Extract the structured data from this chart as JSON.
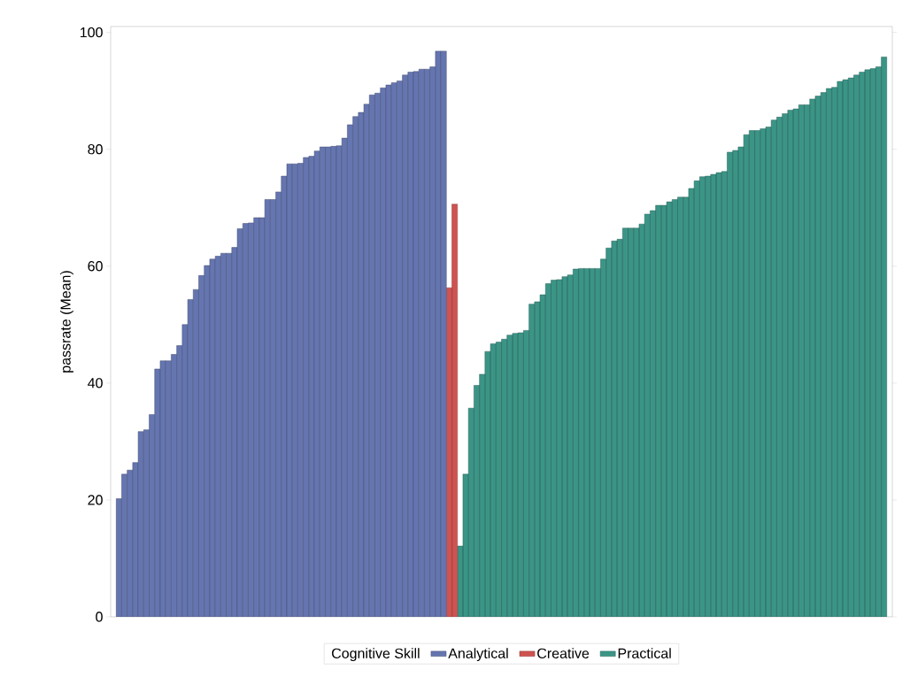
{
  "chart_data": {
    "type": "bar",
    "ylabel": "passrate (Mean)",
    "legend_title": "Cognitive Skill",
    "legend": "bottom",
    "tick_labels": "y",
    "stacked": true,
    "ylim": [
      0,
      101
    ],
    "yticks": [
      0,
      20,
      40,
      60,
      80,
      100
    ],
    "categories": [
      null,
      null,
      null,
      null,
      null,
      null,
      null,
      null,
      null,
      null,
      null,
      null,
      null,
      null,
      null,
      null,
      null,
      null,
      null,
      null,
      null,
      null,
      null,
      null,
      null,
      null,
      null,
      null,
      null,
      null,
      null,
      null,
      null,
      null,
      null,
      null,
      null,
      null,
      null,
      null,
      null,
      null,
      null,
      null,
      null,
      null,
      null,
      null,
      null,
      null,
      null,
      null,
      null,
      null,
      null,
      null,
      null,
      null,
      null,
      null,
      null,
      null,
      null,
      null,
      null,
      null,
      null,
      null,
      null,
      null,
      null,
      null,
      null,
      null,
      null,
      null,
      null,
      null,
      null,
      null,
      null,
      null,
      null,
      null,
      null,
      null,
      null,
      null,
      null,
      null,
      null,
      null,
      null,
      null,
      null,
      null,
      null,
      null,
      null,
      null,
      null,
      null,
      null,
      null,
      null,
      null,
      null,
      null,
      null,
      null,
      null,
      null,
      null,
      null,
      null,
      null,
      null,
      null,
      null,
      null,
      null,
      null,
      null,
      null,
      null,
      null,
      null,
      null,
      null,
      null,
      null,
      null,
      null,
      null,
      null,
      null,
      null,
      null,
      null,
      null
    ],
    "series": [
      {
        "name": "Analytical",
        "color": "#6575b0",
        "values": [
          20.2,
          24.4,
          25.1,
          26.4,
          31.7,
          32.0,
          34.6,
          42.4,
          43.8,
          43.8,
          44.9,
          46.4,
          50.0,
          54.3,
          56.0,
          58.4,
          60.1,
          61.2,
          61.7,
          62.2,
          62.2,
          63.2,
          66.4,
          67.3,
          67.4,
          68.3,
          68.3,
          71.4,
          71.4,
          72.7,
          75.4,
          77.5,
          77.5,
          77.6,
          78.6,
          78.8,
          79.7,
          80.4,
          80.4,
          80.5,
          80.6,
          81.9,
          84.2,
          85.6,
          86.3,
          87.7,
          89.3,
          89.6,
          90.5,
          91.0,
          91.4,
          91.7,
          92.7,
          93.2,
          93.3,
          93.7,
          93.7,
          94.1,
          96.8,
          96.8,
          null,
          null,
          null,
          null,
          null,
          null,
          null,
          null,
          null,
          null,
          null,
          null,
          null,
          null,
          null,
          null,
          null,
          null,
          null,
          null,
          null,
          null,
          null,
          null,
          null,
          null,
          null,
          null,
          null,
          null,
          null,
          null,
          null,
          null,
          null,
          null,
          null,
          null,
          null,
          null,
          null,
          null,
          null,
          null,
          null,
          null,
          null,
          null,
          null,
          null,
          null,
          null,
          null,
          null,
          null,
          null,
          null,
          null,
          null,
          null,
          null,
          null,
          null,
          null,
          null,
          null,
          null,
          null,
          null,
          null,
          null,
          null,
          null,
          null,
          null,
          null,
          null,
          null,
          null,
          null
        ]
      },
      {
        "name": "Creative",
        "color": "#cf5350",
        "values": [
          null,
          null,
          null,
          null,
          null,
          null,
          null,
          null,
          null,
          null,
          null,
          null,
          null,
          null,
          null,
          null,
          null,
          null,
          null,
          null,
          null,
          null,
          null,
          null,
          null,
          null,
          null,
          null,
          null,
          null,
          null,
          null,
          null,
          null,
          null,
          null,
          null,
          null,
          null,
          null,
          null,
          null,
          null,
          null,
          null,
          null,
          null,
          null,
          null,
          null,
          null,
          null,
          null,
          null,
          null,
          null,
          null,
          null,
          null,
          null,
          56.3,
          70.6,
          null,
          null,
          null,
          null,
          null,
          null,
          null,
          null,
          null,
          null,
          null,
          null,
          null,
          null,
          null,
          null,
          null,
          null,
          null,
          null,
          null,
          null,
          null,
          null,
          null,
          null,
          null,
          null,
          null,
          null,
          null,
          null,
          null,
          null,
          null,
          null,
          null,
          null,
          null,
          null,
          null,
          null,
          null,
          null,
          null,
          null,
          null,
          null,
          null,
          null,
          null,
          null,
          null,
          null,
          null,
          null,
          null,
          null,
          null,
          null,
          null,
          null,
          null,
          null,
          null,
          null,
          null,
          null,
          null,
          null,
          null,
          null,
          null,
          null,
          null,
          null,
          null,
          null
        ]
      },
      {
        "name": "Practical",
        "color": "#3b9587",
        "values": [
          null,
          null,
          null,
          null,
          null,
          null,
          null,
          null,
          null,
          null,
          null,
          null,
          null,
          null,
          null,
          null,
          null,
          null,
          null,
          null,
          null,
          null,
          null,
          null,
          null,
          null,
          null,
          null,
          null,
          null,
          null,
          null,
          null,
          null,
          null,
          null,
          null,
          null,
          null,
          null,
          null,
          null,
          null,
          null,
          null,
          null,
          null,
          null,
          null,
          null,
          null,
          null,
          null,
          null,
          null,
          null,
          null,
          null,
          null,
          null,
          null,
          null,
          12.1,
          24.4,
          35.7,
          39.6,
          41.5,
          45.4,
          46.7,
          47.0,
          47.5,
          48.2,
          48.5,
          48.6,
          49.0,
          53.5,
          53.9,
          55.1,
          57.0,
          57.6,
          57.7,
          58.2,
          58.5,
          59.5,
          59.6,
          59.6,
          59.6,
          59.6,
          61.2,
          63.1,
          64.3,
          64.6,
          66.5,
          66.5,
          66.5,
          67.2,
          68.9,
          69.5,
          70.4,
          70.4,
          71.0,
          71.4,
          71.8,
          71.8,
          73.3,
          74.6,
          75.3,
          75.4,
          75.7,
          76.0,
          76.2,
          79.5,
          79.8,
          80.4,
          82.5,
          83.2,
          83.2,
          83.5,
          83.8,
          85.0,
          85.5,
          86.1,
          86.7,
          86.9,
          87.6,
          87.6,
          88.6,
          89.1,
          89.7,
          90.4,
          90.6,
          91.6,
          91.9,
          92.2,
          92.7,
          93.2,
          93.6,
          93.8,
          94.1,
          95.8
        ]
      }
    ]
  }
}
